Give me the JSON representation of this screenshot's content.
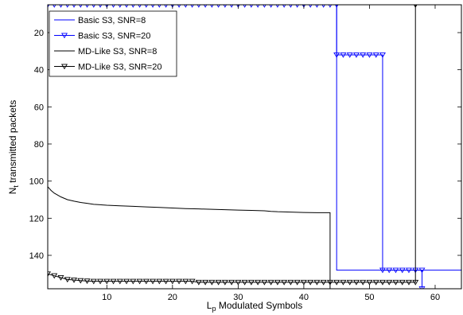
{
  "chart_data": {
    "type": "line",
    "xlabel": {
      "main": "L",
      "sub": "p",
      "rest": " Modulated Symbols"
    },
    "ylabel": {
      "main": "N",
      "sub": "t",
      "rest": " transmitted packets"
    },
    "xlim": [
      1,
      64
    ],
    "ylim": [
      5,
      158
    ],
    "y_reversed": true,
    "grid": false,
    "legend_position": "top-left",
    "x_ticks": [
      10,
      20,
      30,
      40,
      50,
      60
    ],
    "y_ticks": [
      20,
      40,
      60,
      80,
      100,
      120,
      140
    ],
    "series": [
      {
        "name": "Basic S3, SNR=8",
        "color": "#0000ff",
        "marker": "none",
        "x": [
          1,
          45,
          45,
          64
        ],
        "y": [
          5,
          5,
          148,
          148
        ]
      },
      {
        "name": "Basic S3, SNR=20",
        "color": "#0000ff",
        "marker": "triangle-down",
        "x": [
          1,
          2,
          3,
          4,
          5,
          6,
          7,
          8,
          9,
          10,
          11,
          12,
          13,
          14,
          15,
          16,
          17,
          18,
          19,
          20,
          21,
          22,
          23,
          24,
          25,
          26,
          27,
          28,
          29,
          30,
          31,
          32,
          33,
          34,
          35,
          36,
          37,
          38,
          39,
          40,
          41,
          42,
          43,
          44,
          45,
          45,
          46,
          47,
          48,
          49,
          50,
          51,
          52,
          52,
          53,
          54,
          55,
          56,
          57,
          58,
          58
        ],
        "y": [
          5,
          5,
          5,
          5,
          5,
          5,
          5,
          5,
          5,
          5,
          5,
          5,
          5,
          5,
          5,
          5,
          5,
          5,
          5,
          5,
          5,
          5,
          5,
          5,
          5,
          5,
          5,
          5,
          5,
          5,
          5,
          5,
          5,
          5,
          5,
          5,
          5,
          5,
          5,
          5,
          5,
          5,
          5,
          5,
          5,
          32,
          32,
          32,
          32,
          32,
          32,
          32,
          32,
          148,
          148,
          148,
          148,
          148,
          148,
          148,
          158
        ]
      },
      {
        "name": "MD-Like S3, SNR=8",
        "color": "#000000",
        "marker": "none",
        "x": [
          1,
          1.5,
          2,
          2.5,
          3,
          4,
          5,
          6,
          7,
          8,
          10,
          12,
          14,
          16,
          18,
          20,
          22,
          24,
          26,
          28,
          30,
          32,
          34,
          35,
          36,
          38,
          40,
          42,
          44,
          44
        ],
        "y": [
          103,
          105,
          106.5,
          107.5,
          108.5,
          110,
          110.8,
          111.5,
          112,
          112.5,
          113,
          113.3,
          113.6,
          113.9,
          114.2,
          114.5,
          114.8,
          115,
          115.2,
          115.4,
          115.6,
          115.8,
          116,
          116.3,
          116.5,
          116.7,
          116.9,
          117,
          117,
          158
        ]
      },
      {
        "name": "MD-Like S3, SNR=20",
        "color": "#000000",
        "marker": "triangle-down",
        "x": [
          1,
          2,
          3,
          4,
          5,
          6,
          7,
          8,
          9,
          10,
          11,
          12,
          13,
          14,
          15,
          16,
          17,
          18,
          19,
          20,
          21,
          22,
          23,
          24,
          25,
          26,
          27,
          28,
          29,
          30,
          31,
          32,
          33,
          34,
          35,
          36,
          37,
          38,
          39,
          40,
          41,
          42,
          43,
          44,
          45,
          46,
          47,
          48,
          49,
          50,
          51,
          52,
          53,
          54,
          55,
          56,
          57,
          57,
          57
        ],
        "y": [
          150,
          151,
          152,
          153,
          153.3,
          153.6,
          153.8,
          154,
          154,
          154,
          154,
          154,
          154,
          154,
          154,
          154,
          154,
          154,
          154,
          154,
          154,
          154,
          154,
          154.5,
          154.5,
          154.5,
          154.5,
          154.5,
          154.5,
          154.5,
          154.5,
          154.5,
          154.5,
          154.5,
          154.5,
          154.5,
          154.5,
          154.5,
          154.5,
          154.5,
          154.5,
          154.5,
          154.5,
          154.5,
          154.5,
          154.5,
          154.5,
          154.5,
          154.5,
          154.5,
          154.5,
          154.5,
          154.5,
          154.5,
          154.5,
          154.5,
          154.5,
          5,
          5
        ]
      }
    ]
  }
}
